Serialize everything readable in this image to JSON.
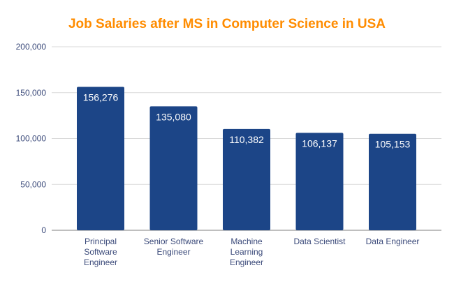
{
  "chart_data": {
    "type": "bar",
    "title": "Job Salaries after MS in Computer Science in USA",
    "xlabel": "",
    "ylabel": "",
    "categories": [
      [
        "Principal",
        "Software",
        "Engineer"
      ],
      [
        "Senior Software",
        "Engineer"
      ],
      [
        "Machine",
        "Learning",
        "Engineer"
      ],
      [
        "Data Scientist"
      ],
      [
        "Data Engineer"
      ]
    ],
    "values": [
      156276,
      135080,
      110382,
      106137,
      105153
    ],
    "data_labels": [
      "156,276",
      "135,080",
      "110,382",
      "106,137",
      "105,153"
    ],
    "ylim": [
      0,
      200000
    ],
    "yticks": [
      0,
      50000,
      100000,
      150000,
      200000
    ],
    "ytick_labels": [
      "0",
      "50,000",
      "100,000",
      "150,000",
      "200,000"
    ],
    "grid": true,
    "legend": "none",
    "colors": {
      "bar": "#1c4587",
      "title": "#ff8c00",
      "axis_text": "#3b4a7a",
      "grid": "#d9d9d9"
    }
  }
}
